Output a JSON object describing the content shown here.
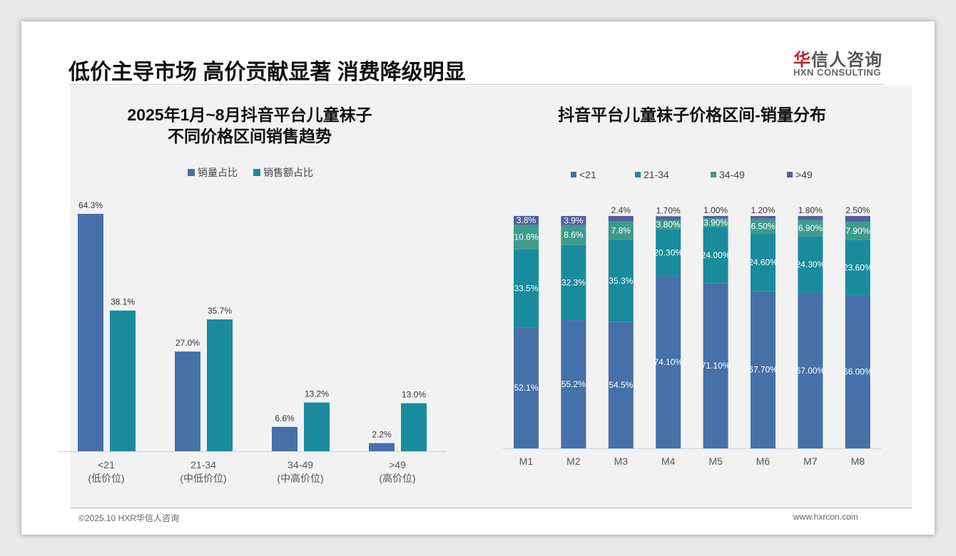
{
  "header": {
    "title": "低价主导市场 高价贡献显著 消费降级明显",
    "logo_cn_mark": "华",
    "logo_cn_rest": "信人咨询",
    "logo_en": "HXN CONSULTING"
  },
  "footer": {
    "left": "©2025.10 HXR华信人咨询",
    "right": "www.hxrcon.com"
  },
  "colors": {
    "blue": "#4671a8",
    "teal": "#1a8b9d",
    "green": "#3d9c8c",
    "purple": "#545f9e"
  },
  "chart_data": [
    {
      "type": "bar",
      "title": "2025年1月~8月抖音平台儿童袜子",
      "subtitle": "不同价格区间销售趋势",
      "categories": [
        "<21",
        "21-34",
        "34-49",
        ">49"
      ],
      "category_sublabels": [
        "(低价位)",
        "(中低价位)",
        "(中高价位)",
        "(高价位)"
      ],
      "series": [
        {
          "name": "销量占比",
          "values": [
            64.3,
            27.0,
            6.6,
            2.2
          ]
        },
        {
          "name": "销售额占比",
          "values": [
            38.1,
            35.7,
            13.2,
            13.0
          ]
        }
      ],
      "value_labels": [
        [
          "64.3%",
          "27.0%",
          "6.6%",
          "2.2%"
        ],
        [
          "38.1%",
          "35.7%",
          "13.2%",
          "13.0%"
        ]
      ],
      "ylim": [
        0,
        70
      ],
      "legend": "top"
    },
    {
      "type": "bar",
      "stacked": true,
      "title": "抖音平台儿童袜子价格区间-销量分布",
      "categories": [
        "M1",
        "M2",
        "M3",
        "M4",
        "M5",
        "M6",
        "M7",
        "M8"
      ],
      "series": [
        {
          "name": "<21",
          "values": [
            52.1,
            55.2,
            54.5,
            74.1,
            71.1,
            67.7,
            67.0,
            66.0
          ],
          "labels": [
            "52.1%",
            "55.2%",
            "54.5%",
            "74.10%",
            "71.10%",
            "67.70%",
            "67.00%",
            "66.00%"
          ]
        },
        {
          "name": "21-34",
          "values": [
            33.5,
            32.3,
            35.3,
            20.3,
            24.0,
            24.6,
            24.3,
            23.6
          ],
          "labels": [
            "33.5%",
            "32.3%",
            "35.3%",
            "20.30%",
            "24.00%",
            "24.60%",
            "24.30%",
            "23.60%"
          ]
        },
        {
          "name": "34-49",
          "values": [
            10.6,
            8.6,
            7.8,
            3.8,
            3.9,
            6.5,
            6.9,
            7.9
          ],
          "labels": [
            "10.6%",
            "8.6%",
            "7.8%",
            "3.80%",
            "3.90%",
            "6.50%",
            "6.90%",
            "7.90%"
          ]
        },
        {
          "name": ">49",
          "values": [
            3.8,
            3.9,
            2.4,
            1.7,
            1.0,
            1.2,
            1.8,
            2.5
          ],
          "labels": [
            "3.8%",
            "3.9%",
            "2.4%",
            "1.70%",
            "1.00%",
            "1.20%",
            "1.80%",
            "2.50%"
          ]
        }
      ],
      "ylim": [
        0,
        100
      ],
      "legend": "top"
    }
  ]
}
